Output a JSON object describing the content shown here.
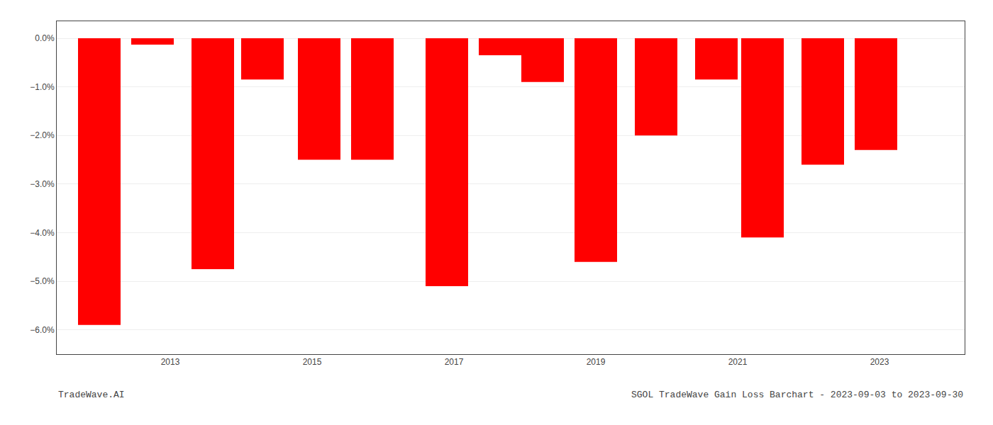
{
  "chart_data": {
    "type": "bar",
    "x": [
      2012,
      2012.75,
      2013.6,
      2014.3,
      2015.1,
      2015.85,
      2016.9,
      2017.65,
      2018.25,
      2019.0,
      2019.85,
      2020.7,
      2021.35,
      2022.2,
      2022.95
    ],
    "values": [
      -5.9,
      -0.13,
      -4.75,
      -0.85,
      -2.5,
      -2.5,
      -5.1,
      -0.35,
      -0.9,
      -4.6,
      -2.0,
      -0.85,
      -4.1,
      -2.6,
      -2.3
    ],
    "color": "#ff0000",
    "xlim": [
      2011.4,
      2024.2
    ],
    "xticks": [
      2013,
      2015,
      2017,
      2019,
      2021,
      2023
    ],
    "ylim": [
      -6.5,
      0.35
    ],
    "yticks": [
      {
        "value": 0.0,
        "label": "0.0%"
      },
      {
        "value": -1.0,
        "label": "−1.0%"
      },
      {
        "value": -2.0,
        "label": "−2.0%"
      },
      {
        "value": -3.0,
        "label": "−3.0%"
      },
      {
        "value": -4.0,
        "label": "−4.0%"
      },
      {
        "value": -5.0,
        "label": "−5.0%"
      },
      {
        "value": -6.0,
        "label": "−6.0%"
      }
    ],
    "grid": true,
    "annotations": [
      "TradeWave.AI",
      "SGOL TradeWave Gain Loss Barchart - 2023-09-03 to 2023-09-30"
    ]
  }
}
